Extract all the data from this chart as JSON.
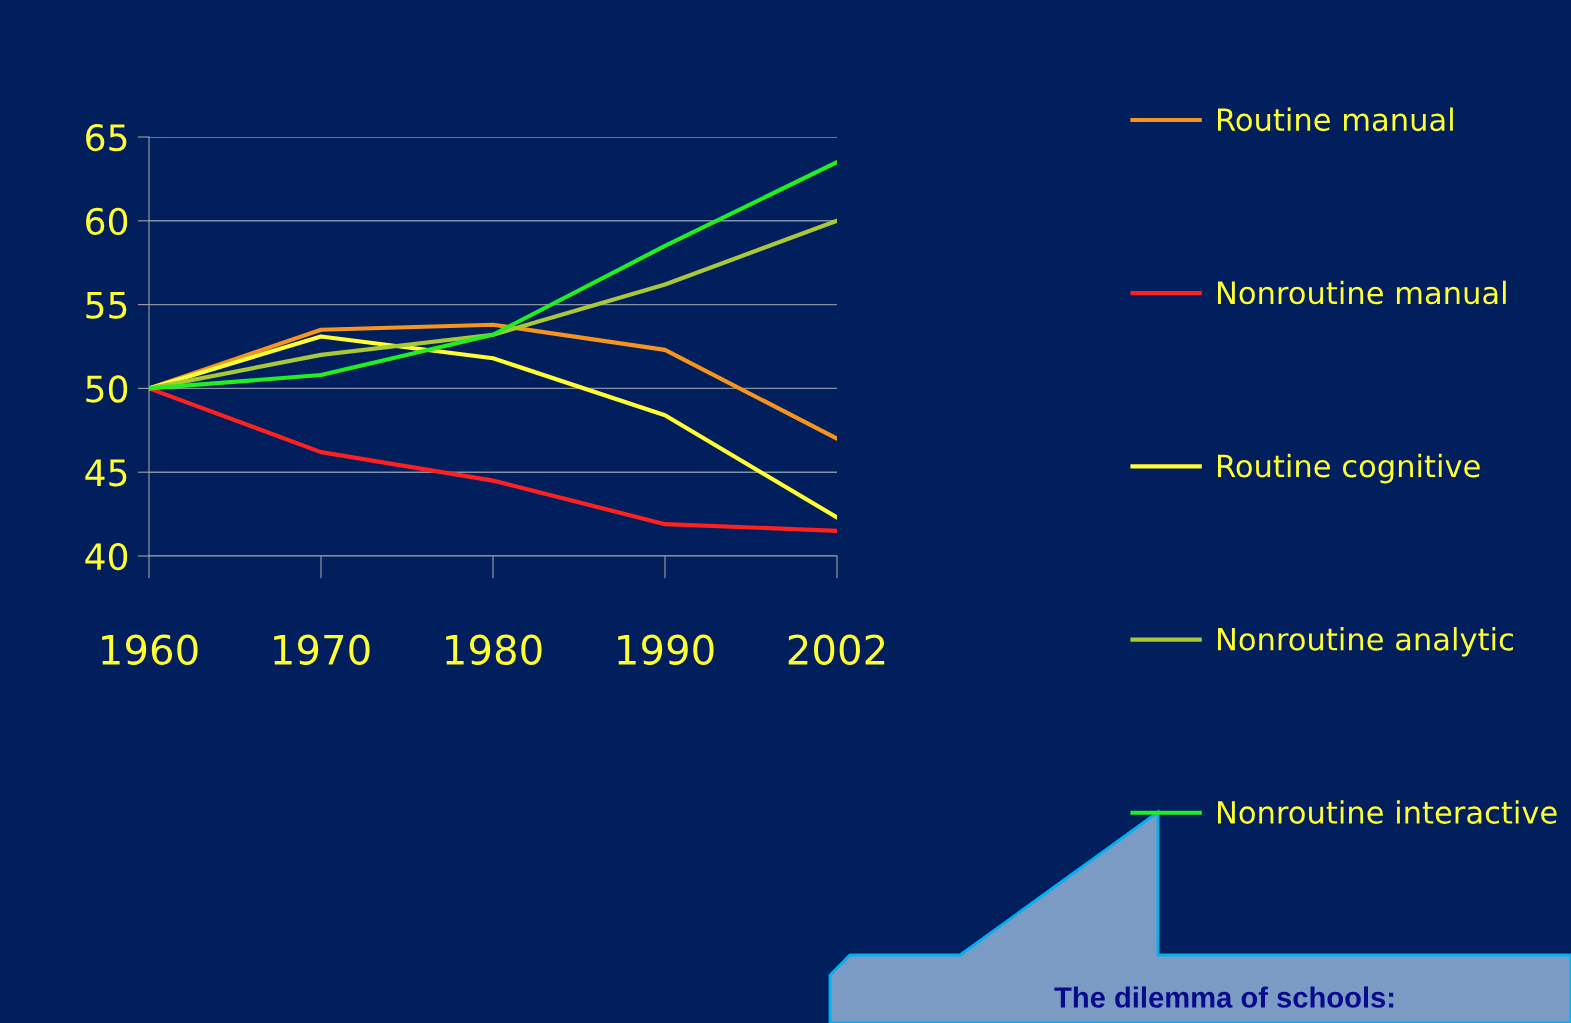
{
  "chart_data": {
    "type": "line",
    "categories": [
      "1960",
      "1970",
      "1980",
      "1990",
      "2002"
    ],
    "series": [
      {
        "name": "Routine manual",
        "color": "#f7941d",
        "values": [
          50,
          53.5,
          53.8,
          52.3,
          47.0
        ]
      },
      {
        "name": "Nonroutine manual",
        "color": "#ff2020",
        "values": [
          50,
          46.2,
          44.5,
          41.9,
          41.5
        ]
      },
      {
        "name": "Routine cognitive",
        "color": "#ffff33",
        "values": [
          50,
          53.1,
          51.8,
          48.4,
          42.3
        ]
      },
      {
        "name": "Nonroutine analytic",
        "color": "#a8c83a",
        "values": [
          50,
          52.0,
          53.2,
          56.2,
          60.0
        ]
      },
      {
        "name": "Nonroutine interactive",
        "color": "#22ee22",
        "values": [
          50,
          50.8,
          53.2,
          58.5,
          63.5
        ]
      }
    ],
    "ylim": [
      40,
      65
    ],
    "yticks": [
      40,
      45,
      50,
      55,
      60,
      65
    ],
    "grid": "y",
    "legend": "right",
    "marker": "none",
    "line_style": "solid",
    "annotations": [
      "The dilemma of schools:"
    ]
  }
}
